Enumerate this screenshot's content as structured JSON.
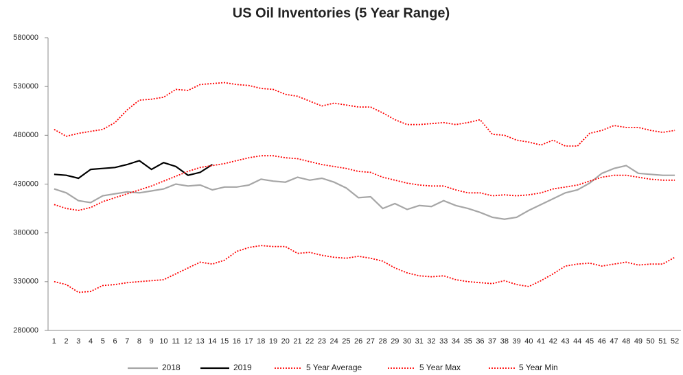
{
  "chart_data": {
    "type": "line",
    "title": "US Oil Inventories (5 Year Range)",
    "categories": [
      "1",
      "2",
      "3",
      "4",
      "5",
      "6",
      "7",
      "8",
      "9",
      "10",
      "11",
      "12",
      "13",
      "14",
      "15",
      "16",
      "17",
      "18",
      "19",
      "20",
      "21",
      "22",
      "23",
      "24",
      "25",
      "26",
      "27",
      "28",
      "29",
      "30",
      "31",
      "32",
      "33",
      "34",
      "35",
      "36",
      "37",
      "38",
      "39",
      "40",
      "41",
      "42",
      "43",
      "44",
      "45",
      "46",
      "47",
      "48",
      "49",
      "50",
      "51",
      "52"
    ],
    "ylim": [
      280000,
      580000
    ],
    "yticks": [
      280000,
      330000,
      380000,
      430000,
      480000,
      530000,
      580000
    ],
    "grid": false,
    "legend": "bottom",
    "series": [
      {
        "name": "2018",
        "color": "#a6a6a6",
        "style": "solid",
        "values": [
          425000,
          421000,
          413000,
          411000,
          418000,
          420000,
          422000,
          421000,
          423000,
          425000,
          430000,
          428000,
          429000,
          424000,
          427000,
          427000,
          429000,
          435000,
          433000,
          432000,
          437000,
          434000,
          436000,
          432000,
          426000,
          416000,
          417000,
          405000,
          410000,
          404000,
          408000,
          407000,
          413000,
          408000,
          405000,
          401000,
          396000,
          394000,
          396000,
          403000,
          409000,
          415000,
          421000,
          424000,
          431000,
          441000,
          446000,
          449000,
          441000,
          440000,
          439000,
          439000
        ]
      },
      {
        "name": "2019",
        "color": "#000000",
        "style": "solid",
        "values": [
          440000,
          439000,
          436000,
          445000,
          446000,
          447000,
          450000,
          454000,
          445000,
          452000,
          448000,
          439000,
          442000,
          450000,
          null,
          null,
          null,
          null,
          null,
          null,
          null,
          null,
          null,
          null,
          null,
          null,
          null,
          null,
          null,
          null,
          null,
          null,
          null,
          null,
          null,
          null,
          null,
          null,
          null,
          null,
          null,
          null,
          null,
          null,
          null,
          null,
          null,
          null,
          null,
          null,
          null,
          null
        ]
      },
      {
        "name": "5 Year Average",
        "color": "#ff0000",
        "style": "dotted",
        "values": [
          409000,
          405000,
          403000,
          406000,
          412000,
          416000,
          420000,
          424000,
          428000,
          433000,
          438000,
          443000,
          447000,
          449000,
          451000,
          454000,
          457000,
          459000,
          459000,
          457000,
          456000,
          453000,
          450000,
          448000,
          446000,
          443000,
          442000,
          437000,
          434000,
          431000,
          429000,
          428000,
          428000,
          424000,
          421000,
          421000,
          418000,
          419000,
          418000,
          419000,
          421000,
          425000,
          427000,
          429000,
          433000,
          437000,
          439000,
          439000,
          437000,
          435000,
          434000,
          434000
        ]
      },
      {
        "name": "5 Year Max",
        "color": "#ff0000",
        "style": "dotted",
        "values": [
          486000,
          479000,
          482000,
          484000,
          486000,
          493000,
          506000,
          516000,
          517000,
          519000,
          527000,
          526000,
          532000,
          533000,
          534000,
          532000,
          531000,
          528000,
          527000,
          522000,
          520000,
          515000,
          510000,
          513000,
          511000,
          509000,
          509000,
          503000,
          496000,
          491000,
          491000,
          492000,
          493000,
          491000,
          493000,
          496000,
          481000,
          480000,
          475000,
          473000,
          470000,
          475000,
          469000,
          469000,
          482000,
          485000,
          490000,
          488000,
          488000,
          485000,
          483000,
          485000
        ]
      },
      {
        "name": "5 Year Min",
        "color": "#ff0000",
        "style": "dotted",
        "values": [
          330000,
          327000,
          319000,
          320000,
          326000,
          327000,
          329000,
          330000,
          331000,
          332000,
          338000,
          344000,
          350000,
          348000,
          352000,
          361000,
          365000,
          367000,
          366000,
          366000,
          359000,
          360000,
          357000,
          355000,
          354000,
          356000,
          354000,
          351000,
          344000,
          339000,
          336000,
          335000,
          336000,
          332000,
          330000,
          329000,
          328000,
          331000,
          327000,
          325000,
          331000,
          338000,
          346000,
          348000,
          349000,
          346000,
          348000,
          350000,
          347000,
          348000,
          348000,
          355000
        ]
      }
    ]
  }
}
